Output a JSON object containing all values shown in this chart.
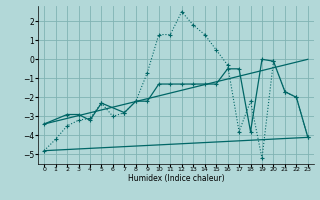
{
  "xlabel": "Humidex (Indice chaleur)",
  "bg_color": "#b2d8d8",
  "grid_color": "#80b3b3",
  "line_color": "#006666",
  "xlim": [
    -0.5,
    23.5
  ],
  "ylim": [
    -5.5,
    2.8
  ],
  "xticks": [
    0,
    1,
    2,
    3,
    4,
    5,
    6,
    7,
    8,
    9,
    10,
    11,
    12,
    13,
    14,
    15,
    16,
    17,
    18,
    19,
    20,
    21,
    22,
    23
  ],
  "yticks": [
    -5,
    -4,
    -3,
    -2,
    -1,
    0,
    1,
    2
  ],
  "line1_x": [
    0,
    1,
    2,
    3,
    4,
    5,
    6,
    7,
    8,
    9,
    10,
    11,
    12,
    13,
    14,
    15,
    16,
    17,
    18,
    19,
    20,
    21,
    22,
    23
  ],
  "line1_y": [
    -4.8,
    -4.2,
    -3.5,
    -3.2,
    -3.1,
    -2.3,
    -3.0,
    -2.8,
    -2.2,
    -0.7,
    1.3,
    1.3,
    2.5,
    1.8,
    1.3,
    0.5,
    -0.3,
    -3.8,
    -2.2,
    -5.2,
    -0.1,
    -1.7,
    -2.0,
    -4.1
  ],
  "line2_x": [
    0,
    2,
    3,
    4,
    5,
    7,
    8,
    9,
    10,
    11,
    12,
    13,
    14,
    15,
    16,
    17,
    18,
    19,
    20,
    21,
    22,
    23
  ],
  "line2_y": [
    -3.4,
    -2.9,
    -2.9,
    -3.2,
    -2.3,
    -2.8,
    -2.2,
    -2.2,
    -1.3,
    -1.3,
    -1.3,
    -1.3,
    -1.3,
    -1.3,
    -0.5,
    -0.5,
    -3.8,
    0.0,
    -0.1,
    -1.7,
    -2.0,
    -4.1
  ],
  "line3_x": [
    0,
    23
  ],
  "line3_y": [
    -3.4,
    -0.0
  ],
  "line4_x": [
    0,
    23
  ],
  "line4_y": [
    -4.8,
    -4.1
  ],
  "line1_dotted": false,
  "line1_has_markers": true
}
